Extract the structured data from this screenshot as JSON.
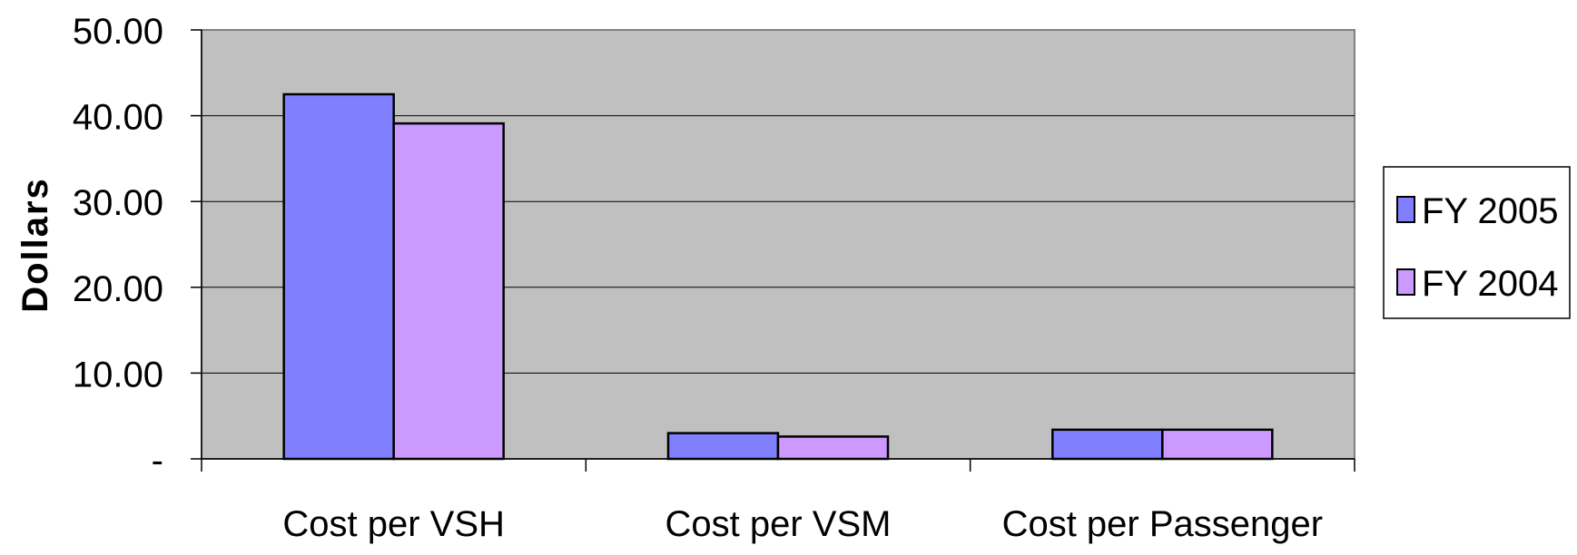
{
  "chart_data": {
    "type": "bar",
    "title": "",
    "xlabel": "",
    "ylabel": "Dollars",
    "ylim": [
      0,
      50
    ],
    "yticks": [
      0,
      10,
      20,
      30,
      40,
      50
    ],
    "ytick_labels": [
      "-",
      "10.00",
      "20.00",
      "30.00",
      "40.00",
      "50.00"
    ],
    "grid": true,
    "legend_position": "right",
    "categories": [
      "Cost per VSH",
      "Cost per VSM",
      "Cost per Passenger"
    ],
    "series": [
      {
        "name": "FY 2005",
        "color": "#8080ff",
        "values": [
          42.5,
          3.0,
          3.4
        ]
      },
      {
        "name": "FY 2004",
        "color": "#cc99ff",
        "values": [
          39.1,
          2.6,
          3.4
        ]
      }
    ],
    "plot_background": "#c0c0c0"
  }
}
